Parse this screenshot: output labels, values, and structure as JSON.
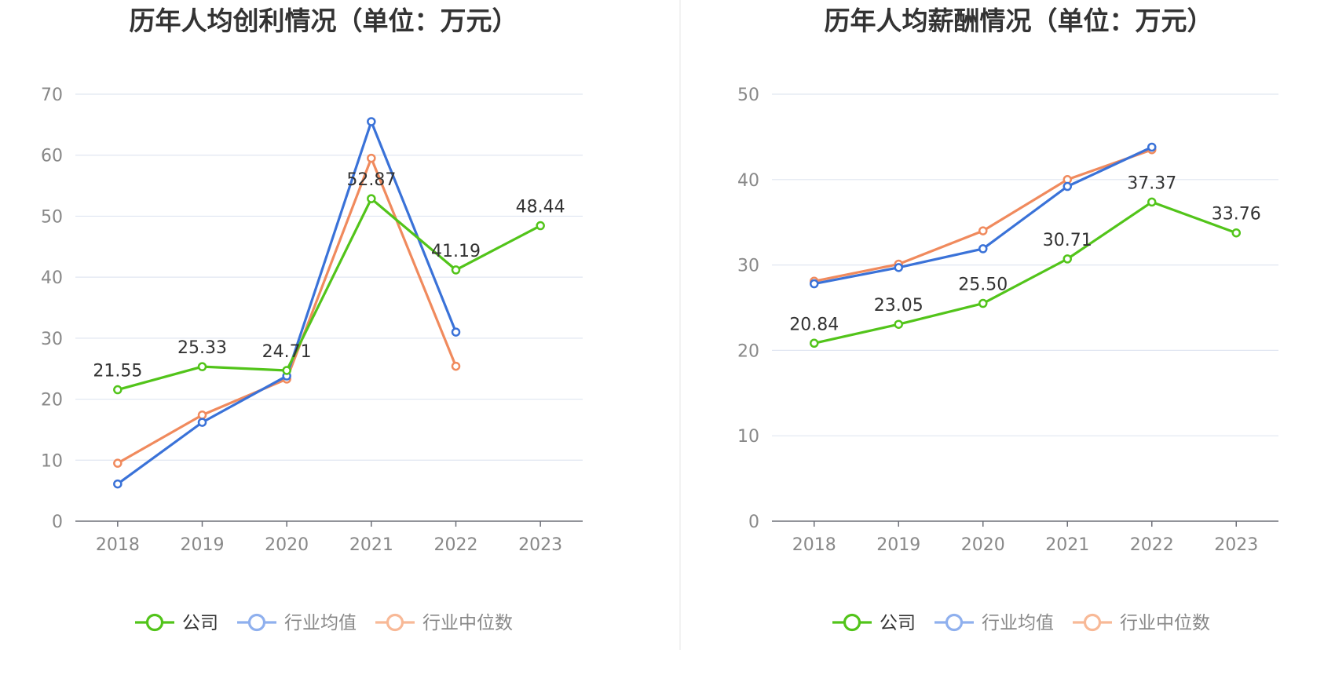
{
  "legend": {
    "items": [
      {
        "label": "公司",
        "color": "#52c41a",
        "active": true
      },
      {
        "label": "行业均值",
        "color": "#8fb0ee",
        "active": false
      },
      {
        "label": "行业中位数",
        "color": "#f8b997",
        "active": false
      }
    ]
  },
  "chart_data": [
    {
      "type": "line",
      "title": "历年人均创利情况（单位：万元）",
      "x": [
        "2018",
        "2019",
        "2020",
        "2021",
        "2022",
        "2023"
      ],
      "ylim": [
        0,
        70
      ],
      "yticks": [
        0,
        10,
        20,
        30,
        40,
        50,
        60,
        70
      ],
      "grid": true,
      "legend_position": "bottom",
      "series": [
        {
          "name": "公司",
          "color": "#52c41a",
          "values": [
            21.55,
            25.33,
            24.71,
            52.87,
            41.19,
            48.44
          ],
          "labels": [
            "21.55",
            "25.33",
            "24.71",
            "52.87",
            "41.19",
            "48.44"
          ]
        },
        {
          "name": "行业均值",
          "color": "#3a72d8",
          "values": [
            6.1,
            16.2,
            23.8,
            65.5,
            31.0,
            null
          ]
        },
        {
          "name": "行业中位数",
          "color": "#f08a5d",
          "values": [
            9.5,
            17.4,
            23.3,
            59.5,
            25.4,
            null
          ]
        }
      ]
    },
    {
      "type": "line",
      "title": "历年人均薪酬情况（单位：万元）",
      "x": [
        "2018",
        "2019",
        "2020",
        "2021",
        "2022",
        "2023"
      ],
      "ylim": [
        0,
        50
      ],
      "yticks": [
        0,
        10,
        20,
        30,
        40,
        50
      ],
      "grid": true,
      "legend_position": "bottom",
      "series": [
        {
          "name": "公司",
          "color": "#52c41a",
          "values": [
            20.84,
            23.05,
            25.5,
            30.71,
            37.37,
            33.76
          ],
          "labels": [
            "20.84",
            "23.05",
            "25.50",
            "30.71",
            "37.37",
            "33.76"
          ]
        },
        {
          "name": "行业均值",
          "color": "#3a72d8",
          "values": [
            27.8,
            29.7,
            31.9,
            39.2,
            43.8,
            null
          ]
        },
        {
          "name": "行业中位数",
          "color": "#f08a5d",
          "values": [
            28.1,
            30.1,
            34.0,
            40.0,
            43.5,
            null
          ]
        }
      ]
    }
  ]
}
